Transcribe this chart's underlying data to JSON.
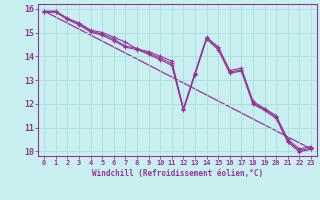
{
  "title": "",
  "xlabel": "Windchill (Refroidissement éolien,°C)",
  "background_color": "#c8f0f0",
  "line_color": "#993399",
  "grid_color": "#aadddd",
  "xlim": [
    -0.5,
    23.5
  ],
  "ylim": [
    9.8,
    16.2
  ],
  "yticks": [
    10,
    11,
    12,
    13,
    14,
    15,
    16
  ],
  "xticks": [
    0,
    1,
    2,
    3,
    4,
    5,
    6,
    7,
    8,
    9,
    10,
    11,
    12,
    13,
    14,
    15,
    16,
    17,
    18,
    19,
    20,
    21,
    22,
    23
  ],
  "line1_y": [
    15.9,
    15.9,
    15.6,
    15.4,
    15.1,
    15.0,
    14.8,
    14.6,
    14.3,
    14.2,
    14.0,
    13.8,
    11.8,
    13.3,
    14.8,
    14.4,
    13.4,
    13.5,
    12.1,
    11.8,
    11.5,
    10.5,
    10.1,
    10.2
  ],
  "line2_y": [
    15.85,
    15.85,
    15.55,
    15.32,
    15.02,
    14.88,
    14.65,
    14.38,
    14.28,
    14.08,
    13.85,
    13.62,
    11.72,
    13.22,
    14.72,
    14.28,
    13.28,
    13.38,
    11.98,
    11.72,
    11.38,
    10.38,
    9.98,
    10.08
  ],
  "line3_y": [
    15.88,
    15.88,
    15.58,
    15.36,
    15.06,
    14.93,
    14.72,
    14.43,
    14.33,
    14.13,
    13.92,
    13.7,
    11.76,
    13.26,
    14.76,
    14.33,
    13.33,
    13.43,
    12.03,
    11.76,
    11.43,
    10.43,
    10.03,
    10.13
  ],
  "trend_x": [
    0,
    23
  ],
  "trend_y": [
    15.9,
    10.1
  ]
}
